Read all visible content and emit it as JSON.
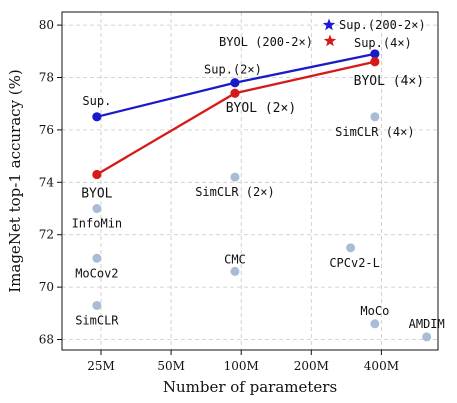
{
  "chart_data": {
    "type": "line",
    "xlabel": "Number of parameters",
    "ylabel": "ImageNet top-1 accuracy (%)",
    "xscale": "log",
    "x_ticks": [
      "25M",
      "50M",
      "100M",
      "200M",
      "400M"
    ],
    "x_tick_values": [
      25,
      50,
      100,
      200,
      400
    ],
    "y_ticks": [
      68,
      70,
      72,
      74,
      76,
      78,
      80
    ],
    "xlim": [
      17,
      700
    ],
    "ylim": [
      67.6,
      80.5
    ],
    "grid": true,
    "legend_placement": "top-right",
    "legend": [
      {
        "label": "Sup.(200-2×)",
        "marker": "star",
        "color": "#1a1ad6"
      },
      {
        "label": "BYOL (200-2×)",
        "marker": "star",
        "color": "#d61a1a"
      }
    ],
    "series": [
      {
        "name": "Sup.",
        "color": "#1a1ac8",
        "points": [
          {
            "x": 24,
            "y": 76.5,
            "label": "Sup."
          },
          {
            "x": 94,
            "y": 77.8,
            "label": "Sup.(2×)"
          },
          {
            "x": 375,
            "y": 78.9,
            "label": "Sup.(4×)"
          }
        ]
      },
      {
        "name": "BYOL",
        "color": "#d61a1a",
        "points": [
          {
            "x": 24,
            "y": 74.3,
            "label": "BYOL"
          },
          {
            "x": 94,
            "y": 77.4,
            "label": "BYOL (2×)"
          },
          {
            "x": 375,
            "y": 78.6,
            "label": "BYOL (4×)"
          }
        ]
      }
    ],
    "others": {
      "color": "#a9bcd6",
      "points": [
        {
          "x": 24,
          "y": 73.0,
          "label": "InfoMin"
        },
        {
          "x": 24,
          "y": 71.1,
          "label": "MoCov2"
        },
        {
          "x": 24,
          "y": 69.3,
          "label": "SimCLR"
        },
        {
          "x": 94,
          "y": 74.2,
          "label": "SimCLR (2×)"
        },
        {
          "x": 94,
          "y": 70.6,
          "label": "CMC"
        },
        {
          "x": 375,
          "y": 76.5,
          "label": "SimCLR (4×)"
        },
        {
          "x": 295,
          "y": 71.5,
          "label": "CPCv2-L"
        },
        {
          "x": 375,
          "y": 68.6,
          "label": "MoCo"
        },
        {
          "x": 626,
          "y": 68.1,
          "label": "AMDIM"
        }
      ]
    }
  }
}
